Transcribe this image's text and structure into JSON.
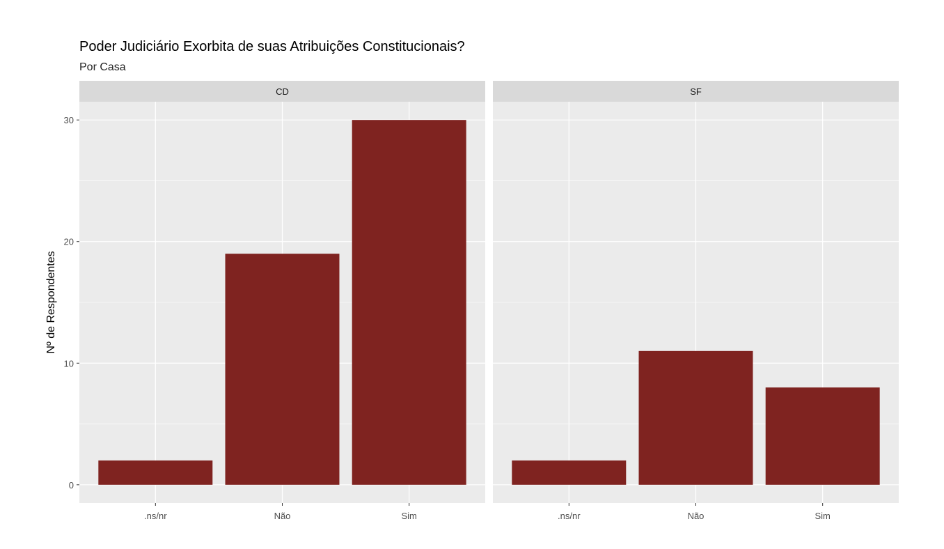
{
  "chart_data": {
    "type": "bar",
    "title": "Poder Judiciário Exorbita de suas Atribuições Constitucionais?",
    "subtitle": "Por Casa",
    "xlabel": "",
    "ylabel": "Nº de Respondentes",
    "ylim": [
      -1.5,
      31.5
    ],
    "yticks": [
      0,
      10,
      20,
      30
    ],
    "grid": true,
    "categories": [
      ".ns/nr",
      "Não",
      "Sim"
    ],
    "bar_color": "#7f2320",
    "panels": [
      {
        "name": "CD",
        "values": [
          2,
          19,
          30
        ]
      },
      {
        "name": "SF",
        "values": [
          2,
          11,
          8
        ]
      }
    ]
  }
}
